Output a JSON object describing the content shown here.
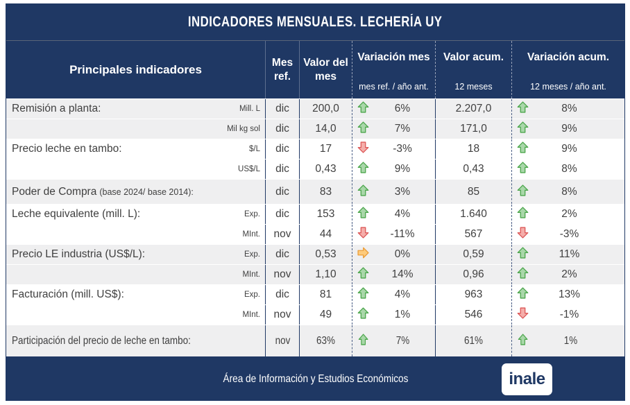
{
  "chart_data": {
    "type": "table",
    "title": "INDICADORES MENSUALES. LECHERÍA UY",
    "columns": [
      "Principales indicadores",
      "Mes ref.",
      "Valor del mes",
      "Variación mes (mes ref. / año ant.)",
      "Valor acum. (12 meses)",
      "Variación acum. (12 meses / año ant.)"
    ],
    "rows": [
      {
        "label": "Remisión a planta:",
        "unit": "Mill. L",
        "mes": "dic",
        "valor_mes": "200,0",
        "var_mes_dir": "up",
        "var_mes_pct": "6%",
        "valor_acum": "2.207,0",
        "var_acum_dir": "up",
        "var_acum_pct": "8%"
      },
      {
        "label": "",
        "unit": "Mil kg sol",
        "mes": "dic",
        "valor_mes": "14,0",
        "var_mes_dir": "up",
        "var_mes_pct": "7%",
        "valor_acum": "171,0",
        "var_acum_dir": "up",
        "var_acum_pct": "9%"
      },
      {
        "label": "Precio leche en tambo:",
        "unit": "$/L",
        "mes": "dic",
        "valor_mes": "17",
        "var_mes_dir": "down",
        "var_mes_pct": "-3%",
        "valor_acum": "18",
        "var_acum_dir": "up",
        "var_acum_pct": "9%"
      },
      {
        "label": "",
        "unit": "US$/L",
        "mes": "dic",
        "valor_mes": "0,43",
        "var_mes_dir": "up",
        "var_mes_pct": "9%",
        "valor_acum": "0,43",
        "var_acum_dir": "up",
        "var_acum_pct": "8%"
      },
      {
        "label": "Poder de Compra",
        "label_note": "(base 2024/ base 2014):",
        "unit": "",
        "mes": "dic",
        "valor_mes": "83",
        "var_mes_dir": "up",
        "var_mes_pct": "3%",
        "valor_acum": "85",
        "var_acum_dir": "up",
        "var_acum_pct": "8%"
      },
      {
        "label": "Leche equivalente (mill. L):",
        "unit": "Exp.",
        "mes": "dic",
        "valor_mes": "153",
        "var_mes_dir": "up",
        "var_mes_pct": "4%",
        "valor_acum": "1.640",
        "var_acum_dir": "up",
        "var_acum_pct": "2%"
      },
      {
        "label": "",
        "unit": "MInt.",
        "mes": "nov",
        "valor_mes": "44",
        "var_mes_dir": "down",
        "var_mes_pct": "-11%",
        "valor_acum": "567",
        "var_acum_dir": "down",
        "var_acum_pct": "-3%"
      },
      {
        "label": "Precio LE industria (US$/L):",
        "unit": "Exp.",
        "mes": "dic",
        "valor_mes": "0,53",
        "var_mes_dir": "flat",
        "var_mes_pct": "0%",
        "valor_acum": "0,59",
        "var_acum_dir": "up",
        "var_acum_pct": "11%"
      },
      {
        "label": "",
        "unit": "MInt.",
        "mes": "nov",
        "valor_mes": "1,10",
        "var_mes_dir": "up",
        "var_mes_pct": "14%",
        "valor_acum": "0,96",
        "var_acum_dir": "up",
        "var_acum_pct": "2%"
      },
      {
        "label": "Facturación (mill. US$):",
        "unit": "Exp.",
        "mes": "dic",
        "valor_mes": "81",
        "var_mes_dir": "up",
        "var_mes_pct": "4%",
        "valor_acum": "963",
        "var_acum_dir": "up",
        "var_acum_pct": "13%"
      },
      {
        "label": "",
        "unit": "MInt.",
        "mes": "nov",
        "valor_mes": "49",
        "var_mes_dir": "up",
        "var_mes_pct": "1%",
        "valor_acum": "546",
        "var_acum_dir": "down",
        "var_acum_pct": "-1%"
      },
      {
        "label": "Participación del precio de leche en tambo:",
        "unit": "",
        "mes": "nov",
        "valor_mes": "63%",
        "var_mes_dir": "up",
        "var_mes_pct": "7%",
        "valor_acum": "61%",
        "var_acum_dir": "up",
        "var_acum_pct": "1%"
      }
    ]
  },
  "header": {
    "indicators": "Principales indicadores",
    "mes_ref": "Mes ref.",
    "valor_mes": "Valor del mes",
    "variacion_mes": "Variación mes",
    "variacion_mes_sub": "mes ref. / año ant.",
    "valor_acum": "Valor acum.",
    "valor_acum_sub": "12 meses",
    "variacion_acum": "Variación acum.",
    "variacion_acum_sub": "12 meses / año ant."
  },
  "footer": {
    "text": "Área de Información y Estudios Económicos",
    "logo_label": "inale"
  },
  "colors": {
    "navy": "#1F3864",
    "row_alt_bg": "#EFEFF0",
    "text": "#3F3F3F",
    "arrows": {
      "up": {
        "fill": "#A9D7A9",
        "stroke": "#4CA64C"
      },
      "down": {
        "fill": "#F5AEAA",
        "stroke": "#DC5858"
      },
      "flat": {
        "fill": "#FDCB7D",
        "stroke": "#EC9F3B"
      }
    }
  }
}
